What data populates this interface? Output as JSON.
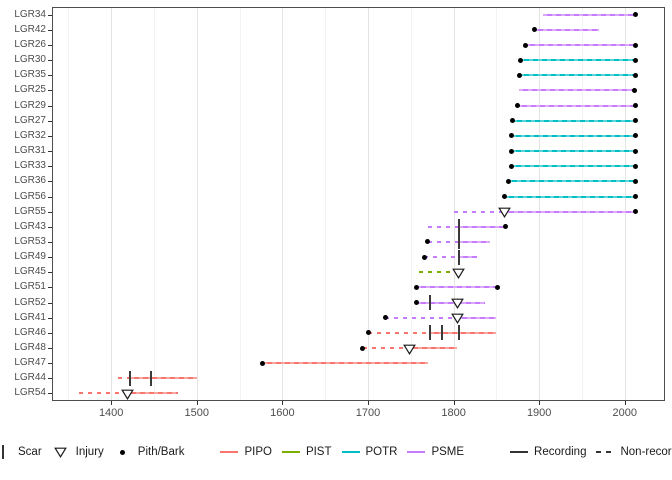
{
  "chart_data": {
    "type": "fire-history-demography",
    "title": "",
    "x_axis": {
      "ticks": [
        1400,
        1500,
        1600,
        1700,
        1800,
        1900,
        2000
      ],
      "minor_ticks": [
        1350,
        1450,
        1550,
        1650,
        1750,
        1850,
        1950
      ],
      "range": [
        1330,
        2046
      ]
    },
    "y_axis": {
      "order_note": "top to bottom",
      "labels": [
        "LGR34",
        "LGR42",
        "LGR26",
        "LGR30",
        "LGR35",
        "LGR25",
        "LGR29",
        "LGR27",
        "LGR32",
        "LGR31",
        "LGR33",
        "LGR36",
        "LGR56",
        "LGR55",
        "LGR43",
        "LGR53",
        "LGR49",
        "LGR45",
        "LGR51",
        "LGR52",
        "LGR41",
        "LGR46",
        "LGR48",
        "LGR47",
        "LGR44",
        "LGR54"
      ]
    },
    "species_colors": {
      "PIPO": "#F8766D",
      "PIST": "#7CAE00",
      "POTR": "#00BFC4",
      "PSME": "#C77CFF"
    },
    "marker_color": "#3a3a3a",
    "series": [
      {
        "id": "LGR34",
        "species": "PSME",
        "solid": [
          [
            1905,
            2012
          ]
        ],
        "dashed": [],
        "scars": [],
        "injuries": [],
        "dots": [
          2012
        ]
      },
      {
        "id": "LGR42",
        "species": "PSME",
        "solid": [
          [
            1894,
            1970
          ]
        ],
        "dashed": [],
        "scars": [],
        "injuries": [],
        "dots": [
          1894
        ]
      },
      {
        "id": "LGR26",
        "species": "PSME",
        "solid": [
          [
            1884,
            2012
          ]
        ],
        "dashed": [],
        "scars": [],
        "injuries": [],
        "dots": [
          1884,
          2012
        ]
      },
      {
        "id": "LGR30",
        "species": "POTR",
        "solid": [
          [
            1878,
            2012
          ]
        ],
        "dashed": [],
        "scars": [],
        "injuries": [],
        "dots": [
          1878,
          2012
        ]
      },
      {
        "id": "LGR35",
        "species": "POTR",
        "solid": [
          [
            1877,
            2012
          ]
        ],
        "dashed": [],
        "scars": [],
        "injuries": [],
        "dots": [
          1877,
          2012
        ]
      },
      {
        "id": "LGR25",
        "species": "PSME",
        "solid": [
          [
            1876,
            2011
          ]
        ],
        "dashed": [],
        "scars": [],
        "injuries": [],
        "dots": [
          2011
        ]
      },
      {
        "id": "LGR29",
        "species": "PSME",
        "solid": [
          [
            1875,
            2012
          ]
        ],
        "dashed": [],
        "scars": [],
        "injuries": [],
        "dots": [
          1875,
          2012
        ]
      },
      {
        "id": "LGR27",
        "species": "POTR",
        "solid": [
          [
            1869,
            2012
          ]
        ],
        "dashed": [],
        "scars": [],
        "injuries": [],
        "dots": [
          1869,
          2012
        ]
      },
      {
        "id": "LGR32",
        "species": "POTR",
        "solid": [
          [
            1868,
            2012
          ]
        ],
        "dashed": [],
        "scars": [],
        "injuries": [],
        "dots": [
          1868,
          2012
        ]
      },
      {
        "id": "LGR31",
        "species": "POTR",
        "solid": [
          [
            1868,
            2012
          ]
        ],
        "dashed": [],
        "scars": [],
        "injuries": [],
        "dots": [
          1868,
          2012
        ]
      },
      {
        "id": "LGR33",
        "species": "POTR",
        "solid": [
          [
            1868,
            2012
          ]
        ],
        "dashed": [],
        "scars": [],
        "injuries": [],
        "dots": [
          1868,
          2012
        ]
      },
      {
        "id": "LGR36",
        "species": "POTR",
        "solid": [
          [
            1864,
            2012
          ]
        ],
        "dashed": [],
        "scars": [],
        "injuries": [],
        "dots": [
          1864,
          2012
        ]
      },
      {
        "id": "LGR56",
        "species": "POTR",
        "solid": [
          [
            1860,
            2012
          ]
        ],
        "dashed": [],
        "scars": [],
        "injuries": [],
        "dots": [
          1860,
          2012
        ]
      },
      {
        "id": "LGR55",
        "species": "PSME",
        "solid": [
          [
            1860,
            2012
          ]
        ],
        "dashed": [
          [
            1800,
            1860
          ]
        ],
        "scars": [],
        "injuries": [
          1860
        ],
        "dots": [
          2012
        ]
      },
      {
        "id": "LGR43",
        "species": "PSME",
        "solid": [
          [
            1806,
            1861
          ]
        ],
        "dashed": [
          [
            1770,
            1806
          ]
        ],
        "scars": [
          1806
        ],
        "injuries": [],
        "dots": [
          1861
        ]
      },
      {
        "id": "LGR53",
        "species": "PSME",
        "solid": [
          [
            1806,
            1842
          ]
        ],
        "dashed": [
          [
            1770,
            1806
          ]
        ],
        "scars": [
          1806
        ],
        "injuries": [],
        "dots": [
          1770
        ]
      },
      {
        "id": "LGR49",
        "species": "PSME",
        "solid": [
          [
            1806,
            1827
          ]
        ],
        "dashed": [
          [
            1766,
            1806
          ]
        ],
        "scars": [
          1806
        ],
        "injuries": [],
        "dots": [
          1766
        ]
      },
      {
        "id": "LGR45",
        "species": "PIST",
        "solid": [],
        "dashed": [
          [
            1759,
            1806
          ]
        ],
        "scars": [],
        "injuries": [
          1806
        ],
        "dots": []
      },
      {
        "id": "LGR51",
        "species": "PSME",
        "solid": [
          [
            1757,
            1851
          ]
        ],
        "dashed": [],
        "scars": [],
        "injuries": [],
        "dots": [
          1757,
          1851
        ]
      },
      {
        "id": "LGR52",
        "species": "PSME",
        "solid": [
          [
            1757,
            1837
          ]
        ],
        "dashed": [],
        "scars": [
          1772
        ],
        "injuries": [
          1805
        ],
        "dots": [
          1757
        ]
      },
      {
        "id": "LGR41",
        "species": "PSME",
        "solid": [
          [
            1805,
            1850
          ]
        ],
        "dashed": [
          [
            1720,
            1805
          ]
        ],
        "scars": [],
        "injuries": [
          1805
        ],
        "dots": [
          1720
        ]
      },
      {
        "id": "LGR46",
        "species": "PIPO",
        "solid": [
          [
            1772,
            1850
          ]
        ],
        "dashed": [
          [
            1700,
            1772
          ]
        ],
        "scars": [
          1772,
          1786,
          1806
        ],
        "injuries": [],
        "dots": [
          1700
        ]
      },
      {
        "id": "LGR48",
        "species": "PIPO",
        "solid": [
          [
            1748,
            1804
          ]
        ],
        "dashed": [
          [
            1694,
            1748
          ]
        ],
        "scars": [],
        "injuries": [
          1748
        ],
        "dots": [
          1694
        ]
      },
      {
        "id": "LGR47",
        "species": "PIPO",
        "solid": [
          [
            1577,
            1770
          ]
        ],
        "dashed": [],
        "scars": [],
        "injuries": [],
        "dots": [
          1577
        ]
      },
      {
        "id": "LGR44",
        "species": "PIPO",
        "solid": [
          [
            1422,
            1500
          ]
        ],
        "dashed": [
          [
            1408,
            1422
          ]
        ],
        "scars": [
          1422,
          1446
        ],
        "injuries": [],
        "dots": []
      },
      {
        "id": "LGR54",
        "species": "PIPO",
        "solid": [
          [
            1419,
            1478
          ]
        ],
        "dashed": [
          [
            1362,
            1419
          ]
        ],
        "scars": [],
        "injuries": [
          1419
        ],
        "dots": []
      }
    ],
    "legend_position": "bottom"
  },
  "legend": {
    "scar": "Scar",
    "injury": "Injury",
    "pith_bark": "Pith/Bark",
    "species": [
      {
        "label": "PIPO",
        "color": "#F8766D"
      },
      {
        "label": "PIST",
        "color": "#7CAE00"
      },
      {
        "label": "POTR",
        "color": "#00BFC4"
      },
      {
        "label": "PSME",
        "color": "#C77CFF"
      }
    ],
    "recording": "Recording",
    "non_recording": "Non-recording"
  }
}
